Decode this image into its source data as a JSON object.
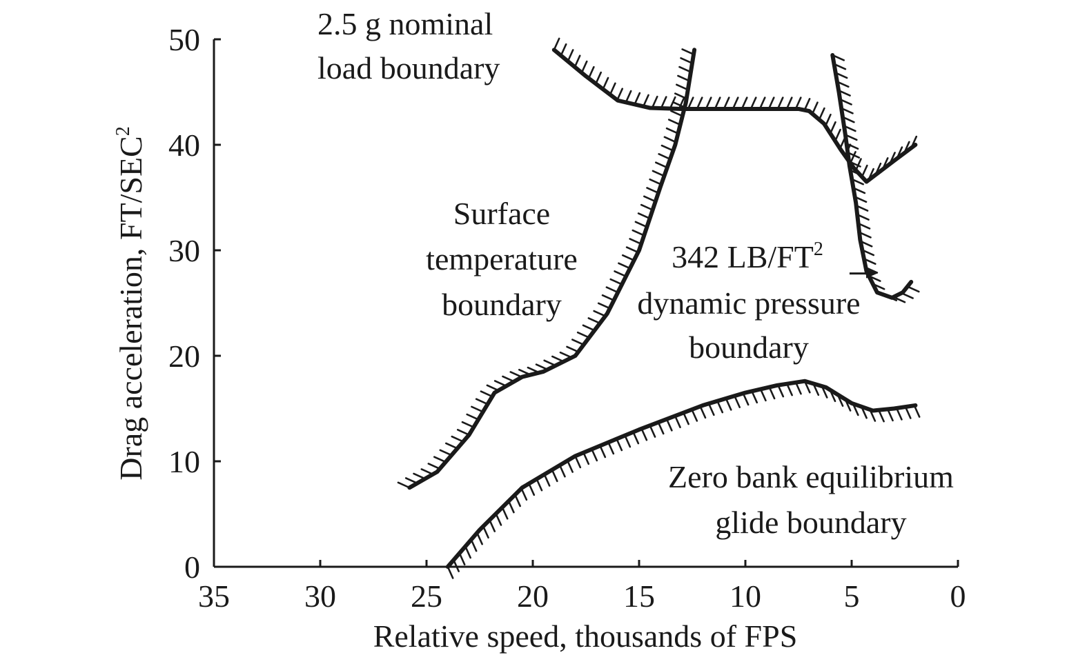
{
  "chart_data": {
    "type": "line",
    "title": "",
    "xlabel": "Relative speed, thousands of FPS",
    "ylabel_text": "Drag acceleration, FT/SEC",
    "ylabel_sup": "2",
    "xlim": [
      35,
      0
    ],
    "ylim": [
      0,
      50
    ],
    "x_ticks": [
      35,
      30,
      25,
      20,
      15,
      10,
      5,
      0
    ],
    "x_tick_labels": [
      "35",
      "30",
      "25",
      "20",
      "15",
      "10",
      "5",
      "0"
    ],
    "y_ticks": [
      0,
      10,
      20,
      30,
      40,
      50
    ],
    "y_tick_labels": [
      "0",
      "10",
      "20",
      "30",
      "40",
      "50"
    ],
    "grid": false,
    "series": [
      {
        "name": "2.5 g nominal load boundary",
        "hatch_side": "up",
        "points": [
          [
            19,
            49
          ],
          [
            17.5,
            46.5
          ],
          [
            16,
            44.2
          ],
          [
            14.5,
            43.5
          ],
          [
            13,
            43.4
          ],
          [
            11,
            43.4
          ],
          [
            9,
            43.4
          ],
          [
            7.5,
            43.4
          ],
          [
            7,
            43.2
          ],
          [
            6.3,
            42
          ],
          [
            5.5,
            39.5
          ],
          [
            4.9,
            37.8
          ],
          [
            4.3,
            36.5
          ],
          [
            3,
            38.5
          ],
          [
            2,
            40
          ]
        ]
      },
      {
        "name": "Surface temperature boundary",
        "hatch_side": "left",
        "points": [
          [
            25.8,
            7.5
          ],
          [
            24.5,
            9
          ],
          [
            23,
            12.5
          ],
          [
            21.8,
            16.5
          ],
          [
            20.5,
            18
          ],
          [
            19.5,
            18.5
          ],
          [
            18,
            20
          ],
          [
            16.5,
            24
          ],
          [
            15,
            30
          ],
          [
            14,
            36
          ],
          [
            13.3,
            40
          ],
          [
            12.8,
            44
          ],
          [
            12.4,
            49
          ]
        ]
      },
      {
        "name": "342 LB/FT2 dynamic pressure boundary",
        "hatch_side": "right",
        "points": [
          [
            5.9,
            48.5
          ],
          [
            5.6,
            45
          ],
          [
            5.3,
            41
          ],
          [
            5.1,
            38
          ],
          [
            4.8,
            34.5
          ],
          [
            4.6,
            31
          ],
          [
            4.3,
            28
          ],
          [
            3.8,
            26
          ],
          [
            3.1,
            25.5
          ],
          [
            2.6,
            26
          ],
          [
            2.2,
            27
          ]
        ]
      },
      {
        "name": "Zero bank equilibrium glide boundary",
        "hatch_side": "down",
        "points": [
          [
            24,
            0
          ],
          [
            22.5,
            3.5
          ],
          [
            20.5,
            7.5
          ],
          [
            18,
            10.5
          ],
          [
            15,
            13
          ],
          [
            12,
            15.3
          ],
          [
            10,
            16.5
          ],
          [
            8.5,
            17.2
          ],
          [
            7.2,
            17.6
          ],
          [
            6.2,
            17
          ],
          [
            5,
            15.5
          ],
          [
            4,
            14.8
          ],
          [
            3,
            15
          ],
          [
            2,
            15.3
          ]
        ]
      }
    ],
    "annotations": [
      {
        "id": "load",
        "lines": [
          "2.5 g nominal",
          "load boundary"
        ]
      },
      {
        "id": "surface",
        "lines": [
          "Surface",
          "temperature",
          "boundary"
        ]
      },
      {
        "id": "pressure",
        "line1_main": "342 LB/FT",
        "line1_sup": "2",
        "lines": [
          "dynamic pressure",
          "boundary"
        ]
      },
      {
        "id": "glide",
        "lines": [
          "Zero bank equilibrium",
          "glide boundary"
        ]
      }
    ],
    "arrow": {
      "from": [
        5.1,
        27.8
      ],
      "to": [
        3.8,
        27.8
      ],
      "label_ref": "pressure"
    }
  }
}
